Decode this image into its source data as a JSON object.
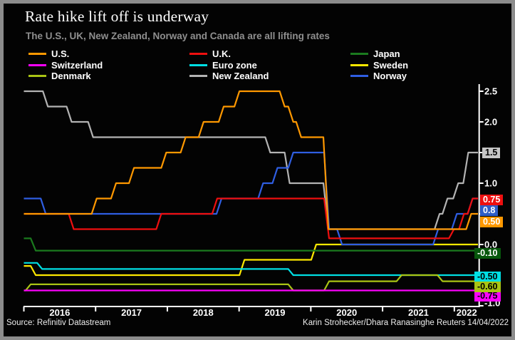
{
  "header": {
    "title": "Rate hike lift off is underway",
    "subtitle": "The U.S., UK, New Zealand, Norway and Canada are all lifting rates"
  },
  "legend": {
    "items": [
      "U.S.",
      "U.K.",
      "Japan",
      "Switzerland",
      "Euro zone",
      "Sweden",
      "Denmark",
      "New Zealand",
      "Norway"
    ]
  },
  "footer": {
    "source": "Source: Refinitiv Datastream",
    "credit": "Karin Strohecker/Dhara Ranasinghe Reuters 14/04/2022"
  },
  "chart_data": {
    "type": "line",
    "title": "Rate hike lift off is underway",
    "subtitle": "The U.S., UK, New Zealand, Norway and Canada are all lifting rates",
    "xlabel": "",
    "ylabel": "",
    "x_ticks": [
      "2016",
      "2017",
      "2018",
      "2019",
      "2020",
      "2021",
      "2022"
    ],
    "x_range": [
      2016.0,
      2022.33
    ],
    "ylim": [
      -1.0,
      2.5
    ],
    "y_tick_values": [
      2.5,
      2.0,
      1.5,
      1.0,
      0.5,
      0.0,
      -0.5,
      -1.0
    ],
    "y_tick_labels_visible": [
      "2.5",
      "2.0",
      "1.0",
      "0.0",
      "-1.0"
    ],
    "grid": false,
    "legend_position": "top",
    "axis_color": "#ffffff",
    "series": [
      {
        "name": "U.S.",
        "color": "#ff9800",
        "end_label": "0.50",
        "badge_bg": "#ff9800",
        "badge_fg": "#ffffff",
        "points": [
          [
            2016.0,
            0.5
          ],
          [
            2016.98,
            0.75
          ],
          [
            2017.25,
            1.0
          ],
          [
            2017.5,
            1.25
          ],
          [
            2017.95,
            1.5
          ],
          [
            2018.22,
            1.75
          ],
          [
            2018.47,
            2.0
          ],
          [
            2018.75,
            2.25
          ],
          [
            2018.97,
            2.5
          ],
          [
            2019.6,
            2.25
          ],
          [
            2019.72,
            2.0
          ],
          [
            2019.83,
            1.75
          ],
          [
            2020.21,
            0.25
          ],
          [
            2022.2,
            0.5
          ]
        ]
      },
      {
        "name": "U.K.",
        "color": "#ee0f0f",
        "end_label": "0.75",
        "badge_bg": "#ee0f0f",
        "badge_fg": "#ffffff",
        "points": [
          [
            2016.0,
            0.5
          ],
          [
            2016.66,
            0.25
          ],
          [
            2017.88,
            0.5
          ],
          [
            2018.66,
            0.75
          ],
          [
            2020.22,
            0.1
          ],
          [
            2021.96,
            0.25
          ],
          [
            2022.1,
            0.5
          ],
          [
            2022.22,
            0.75
          ]
        ]
      },
      {
        "name": "Japan",
        "color": "#1b7a1e",
        "end_label": "-0.10",
        "badge_bg": "#07570c",
        "badge_fg": "#ffffff",
        "points": [
          [
            2016.0,
            0.1
          ],
          [
            2016.13,
            -0.1
          ]
        ]
      },
      {
        "name": "Switzerland",
        "color": "#fb02fb",
        "end_label": "-0.75",
        "badge_bg": "#fb02fb",
        "badge_fg": "#000000",
        "points": [
          [
            2016.0,
            -0.75
          ]
        ]
      },
      {
        "name": "Euro zone",
        "color": "#00dfe4",
        "end_label": "-0.50",
        "badge_bg": "#00dfe4",
        "badge_fg": "#000000",
        "points": [
          [
            2016.0,
            -0.3
          ],
          [
            2016.22,
            -0.4
          ],
          [
            2019.72,
            -0.5
          ]
        ]
      },
      {
        "name": "Sweden",
        "color": "#fde800",
        "end_label": null,
        "badge_bg": null,
        "badge_fg": null,
        "points": [
          [
            2016.0,
            -0.35
          ],
          [
            2016.13,
            -0.5
          ],
          [
            2019.04,
            -0.25
          ],
          [
            2020.04,
            0.0
          ]
        ]
      },
      {
        "name": "Denmark",
        "color": "#a9c414",
        "end_label": "-0.60",
        "badge_bg": "#a9c414",
        "badge_fg": "#000000",
        "points": [
          [
            2016.0,
            -0.75
          ],
          [
            2016.06,
            -0.65
          ],
          [
            2019.72,
            -0.75
          ],
          [
            2020.22,
            -0.6
          ],
          [
            2021.23,
            -0.5
          ],
          [
            2021.8,
            -0.6
          ]
        ]
      },
      {
        "name": "New Zealand",
        "color": "#b3b3b3",
        "end_label": "1.5",
        "badge_bg": "#c6c6c6",
        "badge_fg": "#000000",
        "points": [
          [
            2016.0,
            2.5
          ],
          [
            2016.3,
            2.25
          ],
          [
            2016.63,
            2.0
          ],
          [
            2016.93,
            1.75
          ],
          [
            2019.4,
            1.5
          ],
          [
            2019.67,
            1.0
          ],
          [
            2020.21,
            0.25
          ],
          [
            2021.76,
            0.5
          ],
          [
            2021.87,
            0.75
          ],
          [
            2022.02,
            1.0
          ],
          [
            2022.16,
            1.5
          ]
        ]
      },
      {
        "name": "Norway",
        "color": "#2f5ee2",
        "end_label": "0.8",
        "badge_bg": "#2f5ec8",
        "badge_fg": "#ffffff",
        "points": [
          [
            2016.0,
            0.75
          ],
          [
            2016.27,
            0.5
          ],
          [
            2018.72,
            0.75
          ],
          [
            2019.3,
            1.0
          ],
          [
            2019.5,
            1.25
          ],
          [
            2019.72,
            1.5
          ],
          [
            2020.22,
            0.25
          ],
          [
            2020.4,
            0.0
          ],
          [
            2021.74,
            0.25
          ],
          [
            2022.0,
            0.5
          ],
          [
            2022.22,
            0.75
          ]
        ]
      }
    ]
  }
}
